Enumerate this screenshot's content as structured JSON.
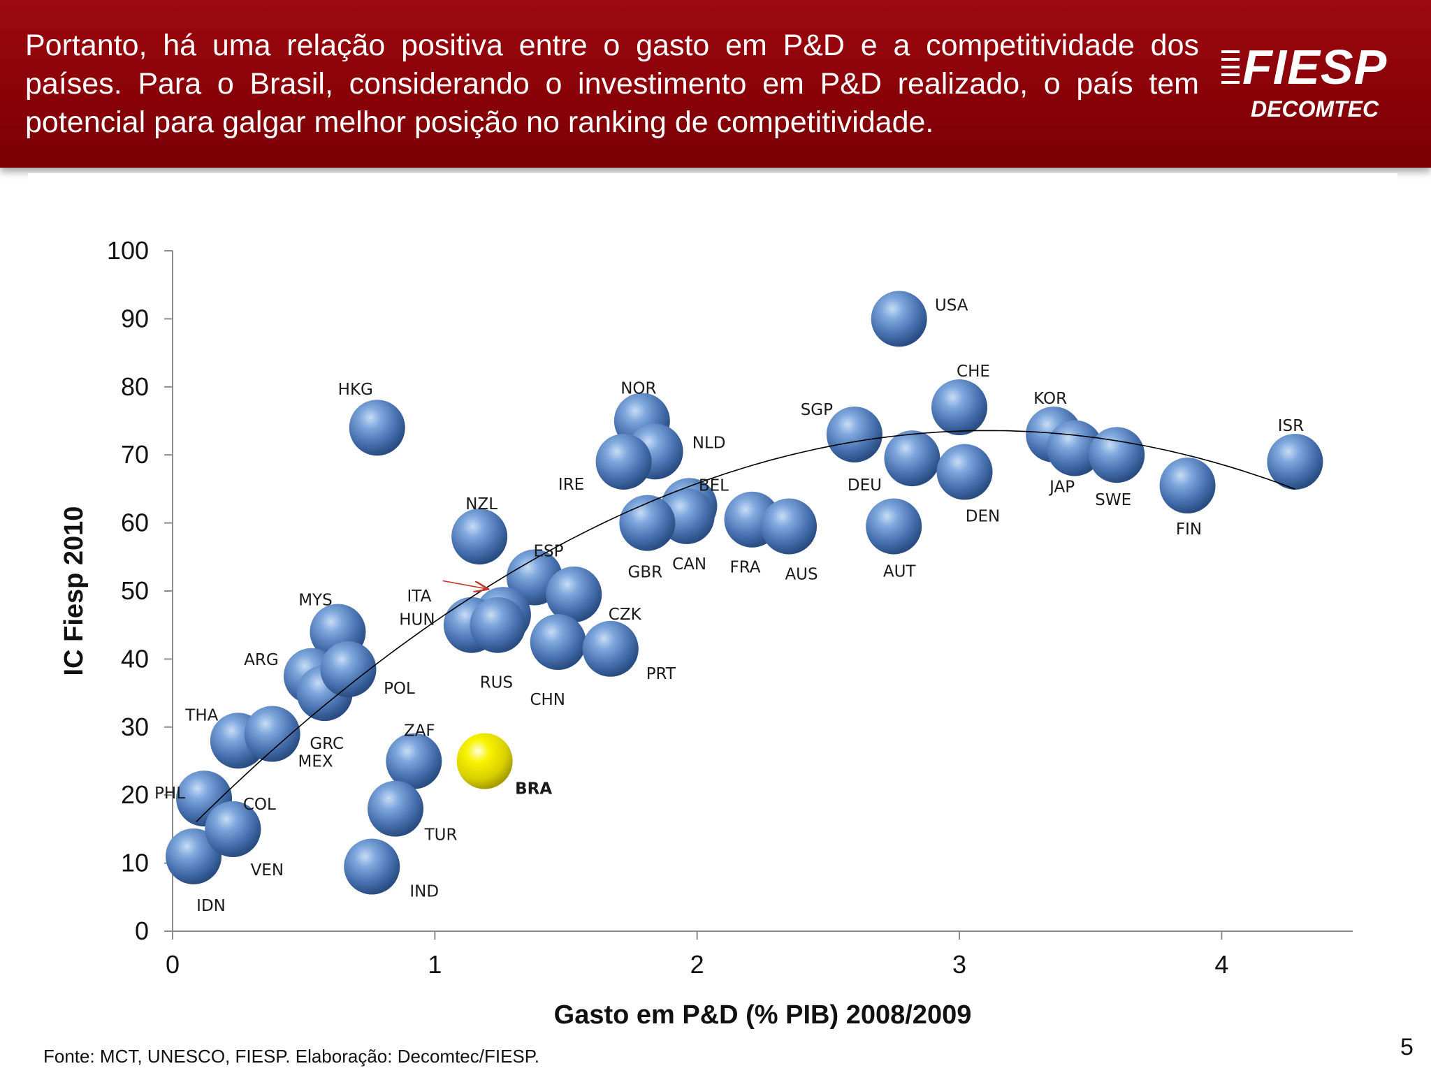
{
  "header": {
    "headline": "Portanto, há uma relação positiva entre o gasto em P&D e a competitividade dos países. Para o Brasil, considerando o investimento em P&D realizado, o país tem potencial para galgar melhor posição no ranking de competitividade.",
    "logo_name": "FIESP",
    "logo_sub": "DECOMTEC"
  },
  "footer": {
    "source": "Fonte: MCT, UNESCO, FIESP. Elaboração: Decomtec/FIESP.",
    "page_number": "5"
  },
  "colors": {
    "header_red": "#8a0208",
    "bubble_blue": "#4f7fc0",
    "bubble_highlight": "#f2ef00",
    "trend_line": "#000000",
    "arrow": "#c0392b"
  },
  "chart_data": {
    "type": "scatter",
    "title": "",
    "xlabel": "Gasto em P&D (% PIB) 2008/2009",
    "ylabel": "IC Fiesp 2010",
    "xlim": [
      0,
      4.5
    ],
    "ylim": [
      0,
      100
    ],
    "xticks": [
      0,
      1,
      2,
      3,
      4
    ],
    "yticks": [
      0,
      10,
      20,
      30,
      40,
      50,
      60,
      70,
      80,
      90,
      100
    ],
    "grid": false,
    "trendline": {
      "type": "polynomial",
      "degree": 2,
      "from_x": 0.09,
      "to_x": 4.28,
      "coefficients": [
        12.6,
        39.2,
        -6.3
      ]
    },
    "annotation": {
      "text": "ITA",
      "arrow_from": [
        1.03,
        51.5
      ],
      "arrow_to": [
        1.2,
        50.3
      ]
    },
    "points": [
      {
        "label": "USA",
        "x": 2.77,
        "y": 90
      },
      {
        "label": "CHE",
        "x": 3.0,
        "y": 77
      },
      {
        "label": "KOR",
        "x": 3.36,
        "y": 73
      },
      {
        "label": "JAP",
        "x": 3.44,
        "y": 71
      },
      {
        "label": "SWE",
        "x": 3.6,
        "y": 70
      },
      {
        "label": "ISR",
        "x": 4.28,
        "y": 69
      },
      {
        "label": "FIN",
        "x": 3.87,
        "y": 65.5
      },
      {
        "label": "SGP",
        "x": 2.6,
        "y": 73
      },
      {
        "label": "DEU",
        "x": 2.82,
        "y": 69.5
      },
      {
        "label": "DEN",
        "x": 3.02,
        "y": 67.5
      },
      {
        "label": "AUT",
        "x": 2.75,
        "y": 59.5
      },
      {
        "label": "NOR",
        "x": 1.79,
        "y": 75
      },
      {
        "label": "NLD",
        "x": 1.84,
        "y": 70.5
      },
      {
        "label": "IRE",
        "x": 1.72,
        "y": 69
      },
      {
        "label": "BEL",
        "x": 1.97,
        "y": 62.5
      },
      {
        "label": "CAN",
        "x": 1.96,
        "y": 61
      },
      {
        "label": "GBR",
        "x": 1.81,
        "y": 60
      },
      {
        "label": "FRA",
        "x": 2.21,
        "y": 60.5
      },
      {
        "label": "AUS",
        "x": 2.35,
        "y": 59.5
      },
      {
        "label": "NZL",
        "x": 1.17,
        "y": 58
      },
      {
        "label": "ESP",
        "x": 1.38,
        "y": 52
      },
      {
        "label": "CZK",
        "x": 1.53,
        "y": 49.5
      },
      {
        "label": "ITA",
        "x": 1.26,
        "y": 46.5
      },
      {
        "label": "HUN",
        "x": 1.14,
        "y": 45
      },
      {
        "label": "RUS",
        "x": 1.24,
        "y": 45
      },
      {
        "label": "CHN",
        "x": 1.47,
        "y": 42.5
      },
      {
        "label": "PRT",
        "x": 1.67,
        "y": 41.5
      },
      {
        "label": "HKG",
        "x": 0.78,
        "y": 74
      },
      {
        "label": "MYS",
        "x": 0.63,
        "y": 44
      },
      {
        "label": "ARG",
        "x": 0.53,
        "y": 37.5
      },
      {
        "label": "GRC",
        "x": 0.58,
        "y": 35
      },
      {
        "label": "POL",
        "x": 0.67,
        "y": 38.5
      },
      {
        "label": "THA",
        "x": 0.25,
        "y": 28
      },
      {
        "label": "MEX",
        "x": 0.38,
        "y": 29
      },
      {
        "label": "ZAF",
        "x": 0.92,
        "y": 25
      },
      {
        "label": "BRA",
        "x": 1.19,
        "y": 25,
        "highlight": true
      },
      {
        "label": "PHL",
        "x": 0.12,
        "y": 19.5
      },
      {
        "label": "COL",
        "x": 0.23,
        "y": 15
      },
      {
        "label": "TUR",
        "x": 0.85,
        "y": 18
      },
      {
        "label": "IND",
        "x": 0.76,
        "y": 9.5
      },
      {
        "label": "IDN",
        "x": 0.08,
        "y": 11
      },
      {
        "label": "VEN",
        "x": 0.23,
        "y": 15
      }
    ]
  }
}
